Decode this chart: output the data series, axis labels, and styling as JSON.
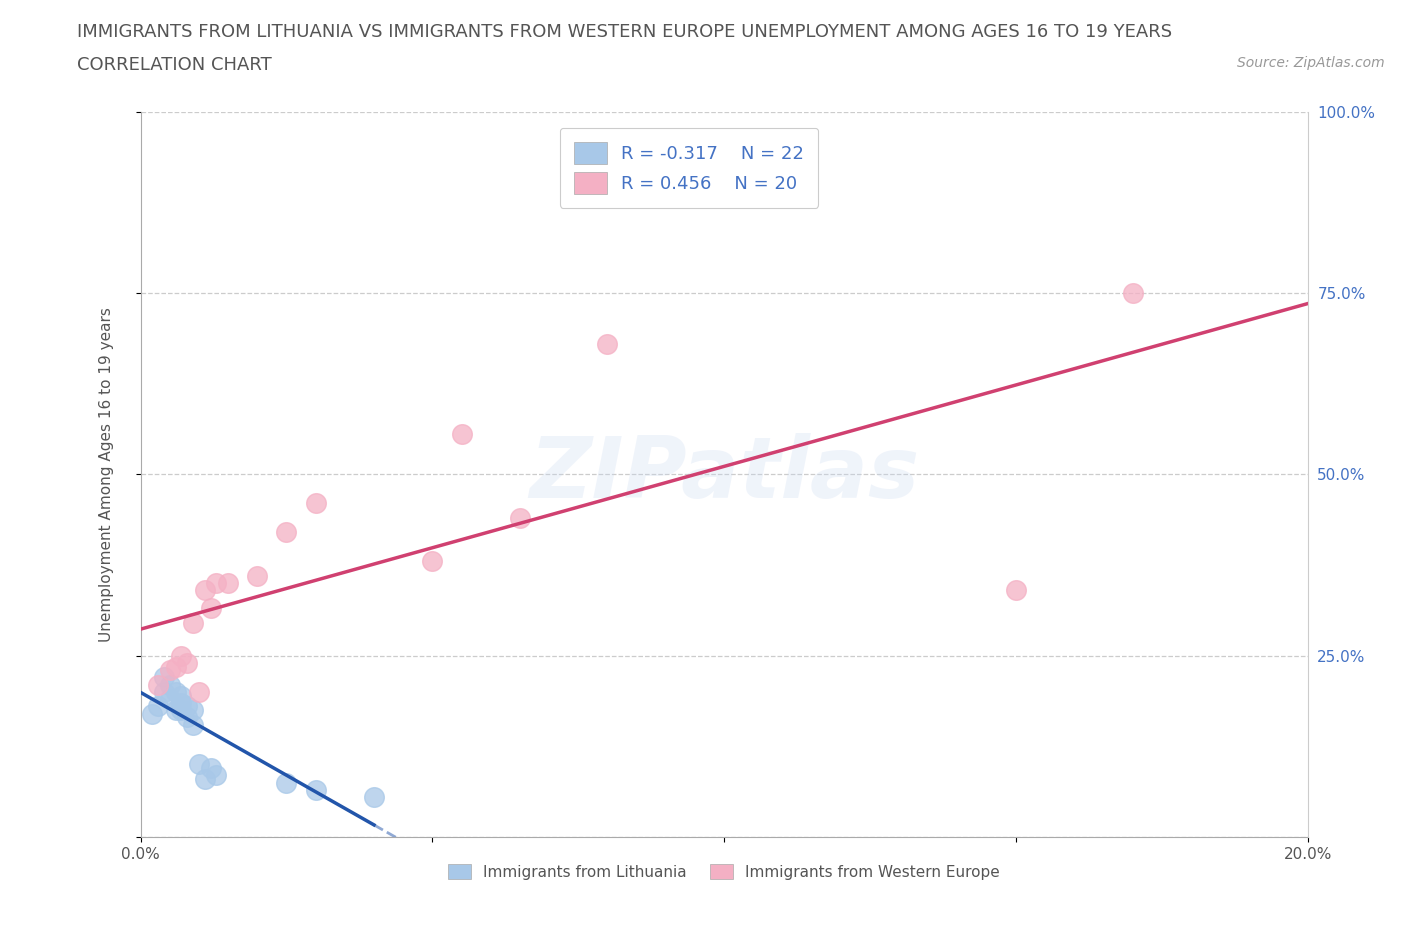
{
  "title": "IMMIGRANTS FROM LITHUANIA VS IMMIGRANTS FROM WESTERN EUROPE UNEMPLOYMENT AMONG AGES 16 TO 19 YEARS",
  "subtitle": "CORRELATION CHART",
  "source": "Source: ZipAtlas.com",
  "ylabel": "Unemployment Among Ages 16 to 19 years",
  "xlim": [
    0.0,
    0.2
  ],
  "ylim": [
    0.0,
    1.0
  ],
  "lithuania_scatter_color": "#a8c8e8",
  "western_europe_scatter_color": "#f4b0c4",
  "lithuania_line_color": "#2255aa",
  "western_europe_line_color": "#d04070",
  "legend_label_1": "Immigrants from Lithuania",
  "legend_label_2": "Immigrants from Western Europe",
  "R1": -0.317,
  "N1": 22,
  "R2": 0.456,
  "N2": 20,
  "bg_color": "#ffffff",
  "watermark": "ZIPatlas",
  "lithuania_x": [
    0.002,
    0.003,
    0.004,
    0.004,
    0.005,
    0.005,
    0.006,
    0.006,
    0.007,
    0.007,
    0.007,
    0.008,
    0.008,
    0.009,
    0.009,
    0.01,
    0.011,
    0.012,
    0.013,
    0.025,
    0.03,
    0.04
  ],
  "lithuania_y": [
    0.17,
    0.18,
    0.2,
    0.22,
    0.19,
    0.21,
    0.175,
    0.2,
    0.175,
    0.185,
    0.195,
    0.165,
    0.18,
    0.155,
    0.175,
    0.1,
    0.08,
    0.095,
    0.085,
    0.075,
    0.065,
    0.055
  ],
  "western_europe_x": [
    0.003,
    0.005,
    0.006,
    0.007,
    0.008,
    0.009,
    0.01,
    0.011,
    0.012,
    0.013,
    0.015,
    0.02,
    0.025,
    0.03,
    0.05,
    0.055,
    0.065,
    0.08,
    0.15,
    0.17
  ],
  "western_europe_y": [
    0.21,
    0.23,
    0.235,
    0.25,
    0.24,
    0.295,
    0.2,
    0.34,
    0.315,
    0.35,
    0.35,
    0.36,
    0.42,
    0.46,
    0.38,
    0.555,
    0.44,
    0.68,
    0.34,
    0.75
  ],
  "title_fontsize": 13,
  "subtitle_fontsize": 13,
  "axis_label_fontsize": 11,
  "tick_fontsize": 11,
  "legend_fontsize": 13,
  "source_fontsize": 10
}
